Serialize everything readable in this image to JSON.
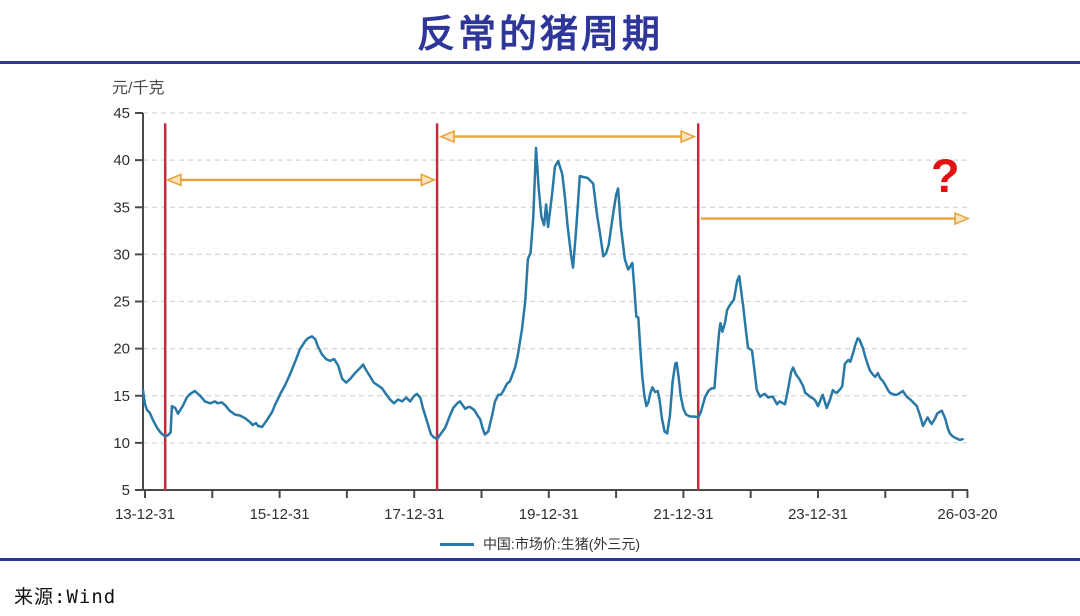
{
  "page": {
    "title": "反常的猪周期",
    "source": "来源:Wind",
    "accent_color": "#2f3699"
  },
  "chart_data": {
    "type": "line",
    "title": "反常的猪周期",
    "unit_label": "元/千克",
    "xlabel": "",
    "ylabel": "元/千克",
    "legend": {
      "label": "中国:市场价:生猪(外三元)",
      "position": "bottom-center"
    },
    "grid": {
      "shown": true,
      "dashed": true,
      "color": "#d6d6d6"
    },
    "axis_color": "#4a4a4a",
    "tick_text_color": "#2f2f2f",
    "y_axis": {
      "min": 5,
      "max": 45,
      "step": 5,
      "ticks": [
        5,
        10,
        15,
        20,
        25,
        30,
        35,
        40,
        45
      ]
    },
    "x_axis": {
      "start_year": 2013.97,
      "end_year": 2026.22,
      "tick_years": [
        2014,
        2015,
        2016,
        2017,
        2018,
        2019,
        2020,
        2021,
        2022,
        2023,
        2024,
        2025,
        2026,
        2026.22
      ],
      "labels": [
        {
          "year": 2014,
          "text": "13-12-31"
        },
        {
          "year": 2016,
          "text": "15-12-31"
        },
        {
          "year": 2018,
          "text": "17-12-31"
        },
        {
          "year": 2020,
          "text": "19-12-31"
        },
        {
          "year": 2022,
          "text": "21-12-31"
        },
        {
          "year": 2024,
          "text": "23-12-31"
        },
        {
          "year": 2026.22,
          "text": "26-03-20"
        }
      ]
    },
    "series": [
      {
        "name": "中国:市场价:生猪(外三元)",
        "color": "#2879a6",
        "points": [
          [
            2013.97,
            15.6
          ],
          [
            2014.0,
            14.1
          ],
          [
            2014.03,
            13.5
          ],
          [
            2014.07,
            13.2
          ],
          [
            2014.12,
            12.4
          ],
          [
            2014.18,
            11.6
          ],
          [
            2014.22,
            11.2
          ],
          [
            2014.26,
            10.9
          ],
          [
            2014.3,
            10.7
          ],
          [
            2014.34,
            10.8
          ],
          [
            2014.38,
            11.1
          ],
          [
            2014.4,
            13.9
          ],
          [
            2014.45,
            13.7
          ],
          [
            2014.49,
            13.1
          ],
          [
            2014.56,
            13.9
          ],
          [
            2014.62,
            14.8
          ],
          [
            2014.67,
            15.2
          ],
          [
            2014.74,
            15.5
          ],
          [
            2014.82,
            15.0
          ],
          [
            2014.89,
            14.4
          ],
          [
            2014.97,
            14.2
          ],
          [
            2015.04,
            14.4
          ],
          [
            2015.08,
            14.2
          ],
          [
            2015.14,
            14.3
          ],
          [
            2015.19,
            14.0
          ],
          [
            2015.26,
            13.4
          ],
          [
            2015.34,
            13.0
          ],
          [
            2015.41,
            12.9
          ],
          [
            2015.49,
            12.6
          ],
          [
            2015.56,
            12.2
          ],
          [
            2015.6,
            11.9
          ],
          [
            2015.65,
            12.1
          ],
          [
            2015.68,
            11.8
          ],
          [
            2015.74,
            11.7
          ],
          [
            2015.81,
            12.4
          ],
          [
            2015.89,
            13.3
          ],
          [
            2015.93,
            14.0
          ],
          [
            2016.01,
            15.2
          ],
          [
            2016.08,
            16.1
          ],
          [
            2016.15,
            17.2
          ],
          [
            2016.23,
            18.6
          ],
          [
            2016.3,
            19.9
          ],
          [
            2016.38,
            20.8
          ],
          [
            2016.42,
            21.1
          ],
          [
            2016.48,
            21.3
          ],
          [
            2016.53,
            21.0
          ],
          [
            2016.57,
            20.2
          ],
          [
            2016.63,
            19.4
          ],
          [
            2016.69,
            18.9
          ],
          [
            2016.75,
            18.7
          ],
          [
            2016.81,
            18.9
          ],
          [
            2016.87,
            18.2
          ],
          [
            2016.93,
            16.8
          ],
          [
            2016.99,
            16.4
          ],
          [
            2017.05,
            16.8
          ],
          [
            2017.12,
            17.4
          ],
          [
            2017.19,
            17.9
          ],
          [
            2017.24,
            18.3
          ],
          [
            2017.28,
            17.8
          ],
          [
            2017.34,
            17.1
          ],
          [
            2017.4,
            16.4
          ],
          [
            2017.46,
            16.1
          ],
          [
            2017.52,
            15.8
          ],
          [
            2017.58,
            15.2
          ],
          [
            2017.64,
            14.6
          ],
          [
            2017.7,
            14.2
          ],
          [
            2017.76,
            14.6
          ],
          [
            2017.82,
            14.4
          ],
          [
            2017.88,
            14.8
          ],
          [
            2017.94,
            14.4
          ],
          [
            2018.0,
            15.0
          ],
          [
            2018.04,
            15.2
          ],
          [
            2018.09,
            14.8
          ],
          [
            2018.13,
            13.7
          ],
          [
            2018.19,
            12.3
          ],
          [
            2018.25,
            10.9
          ],
          [
            2018.29,
            10.6
          ],
          [
            2018.34,
            10.4
          ],
          [
            2018.4,
            11.0
          ],
          [
            2018.46,
            11.6
          ],
          [
            2018.52,
            12.7
          ],
          [
            2018.58,
            13.7
          ],
          [
            2018.64,
            14.2
          ],
          [
            2018.68,
            14.4
          ],
          [
            2018.73,
            13.9
          ],
          [
            2018.76,
            13.6
          ],
          [
            2018.8,
            13.8
          ],
          [
            2018.83,
            13.8
          ],
          [
            2018.87,
            13.6
          ],
          [
            2018.9,
            13.4
          ],
          [
            2018.94,
            12.9
          ],
          [
            2018.98,
            12.5
          ],
          [
            2019.02,
            11.5
          ],
          [
            2019.05,
            10.9
          ],
          [
            2019.1,
            11.2
          ],
          [
            2019.16,
            13.0
          ],
          [
            2019.2,
            14.4
          ],
          [
            2019.25,
            15.1
          ],
          [
            2019.29,
            15.1
          ],
          [
            2019.33,
            15.6
          ],
          [
            2019.38,
            16.3
          ],
          [
            2019.42,
            16.5
          ],
          [
            2019.5,
            18.0
          ],
          [
            2019.54,
            19.3
          ],
          [
            2019.6,
            22.0
          ],
          [
            2019.65,
            25.0
          ],
          [
            2019.69,
            29.5
          ],
          [
            2019.73,
            30.2
          ],
          [
            2019.77,
            34.0
          ],
          [
            2019.81,
            41.3
          ],
          [
            2019.85,
            37.0
          ],
          [
            2019.89,
            34.0
          ],
          [
            2019.93,
            33.1
          ],
          [
            2019.96,
            35.3
          ],
          [
            2019.99,
            32.9
          ],
          [
            2020.05,
            36.5
          ],
          [
            2020.09,
            39.3
          ],
          [
            2020.14,
            39.9
          ],
          [
            2020.2,
            38.5
          ],
          [
            2020.24,
            36.0
          ],
          [
            2020.28,
            33.0
          ],
          [
            2020.33,
            30.0
          ],
          [
            2020.36,
            28.6
          ],
          [
            2020.4,
            32.0
          ],
          [
            2020.43,
            35.0
          ],
          [
            2020.46,
            38.3
          ],
          [
            2020.52,
            38.2
          ],
          [
            2020.58,
            38.1
          ],
          [
            2020.66,
            37.5
          ],
          [
            2020.72,
            34.0
          ],
          [
            2020.76,
            32.3
          ],
          [
            2020.81,
            29.8
          ],
          [
            2020.85,
            30.1
          ],
          [
            2020.89,
            31.0
          ],
          [
            2020.95,
            34.0
          ],
          [
            2021.0,
            36.3
          ],
          [
            2021.03,
            37.0
          ],
          [
            2021.07,
            33.0
          ],
          [
            2021.13,
            29.5
          ],
          [
            2021.18,
            28.4
          ],
          [
            2021.21,
            28.7
          ],
          [
            2021.24,
            29.1
          ],
          [
            2021.27,
            26.5
          ],
          [
            2021.3,
            23.4
          ],
          [
            2021.33,
            23.3
          ],
          [
            2021.36,
            20.0
          ],
          [
            2021.39,
            17.0
          ],
          [
            2021.42,
            15.0
          ],
          [
            2021.45,
            13.9
          ],
          [
            2021.48,
            14.3
          ],
          [
            2021.51,
            15.3
          ],
          [
            2021.54,
            15.9
          ],
          [
            2021.58,
            15.4
          ],
          [
            2021.62,
            15.5
          ],
          [
            2021.65,
            14.4
          ],
          [
            2021.68,
            12.6
          ],
          [
            2021.72,
            11.2
          ],
          [
            2021.76,
            11.0
          ],
          [
            2021.8,
            12.9
          ],
          [
            2021.84,
            16.5
          ],
          [
            2021.88,
            18.4
          ],
          [
            2021.9,
            18.5
          ],
          [
            2021.93,
            16.9
          ],
          [
            2021.96,
            15.0
          ],
          [
            2022.0,
            13.6
          ],
          [
            2022.04,
            13.0
          ],
          [
            2022.1,
            12.8
          ],
          [
            2022.16,
            12.8
          ],
          [
            2022.22,
            12.7
          ],
          [
            2022.26,
            13.3
          ],
          [
            2022.32,
            14.8
          ],
          [
            2022.37,
            15.5
          ],
          [
            2022.42,
            15.8
          ],
          [
            2022.46,
            15.8
          ],
          [
            2022.5,
            19.2
          ],
          [
            2022.53,
            21.7
          ],
          [
            2022.55,
            22.7
          ],
          [
            2022.58,
            21.8
          ],
          [
            2022.62,
            22.8
          ],
          [
            2022.65,
            24.1
          ],
          [
            2022.69,
            24.6
          ],
          [
            2022.72,
            24.9
          ],
          [
            2022.75,
            25.2
          ],
          [
            2022.8,
            27.2
          ],
          [
            2022.83,
            27.7
          ],
          [
            2022.86,
            26.0
          ],
          [
            2022.89,
            24.4
          ],
          [
            2022.92,
            22.5
          ],
          [
            2022.96,
            20.1
          ],
          [
            2023.02,
            19.8
          ],
          [
            2023.06,
            17.5
          ],
          [
            2023.09,
            15.6
          ],
          [
            2023.14,
            14.9
          ],
          [
            2023.18,
            15.1
          ],
          [
            2023.21,
            15.2
          ],
          [
            2023.26,
            14.8
          ],
          [
            2023.3,
            14.9
          ],
          [
            2023.33,
            14.9
          ],
          [
            2023.39,
            14.1
          ],
          [
            2023.43,
            14.4
          ],
          [
            2023.48,
            14.2
          ],
          [
            2023.51,
            14.1
          ],
          [
            2023.55,
            15.5
          ],
          [
            2023.6,
            17.5
          ],
          [
            2023.63,
            18.0
          ],
          [
            2023.67,
            17.3
          ],
          [
            2023.73,
            16.7
          ],
          [
            2023.78,
            16.0
          ],
          [
            2023.81,
            15.3
          ],
          [
            2023.85,
            15.1
          ],
          [
            2023.88,
            14.9
          ],
          [
            2023.93,
            14.7
          ],
          [
            2023.96,
            14.5
          ],
          [
            2024.0,
            13.9
          ],
          [
            2024.04,
            14.6
          ],
          [
            2024.07,
            15.1
          ],
          [
            2024.1,
            14.4
          ],
          [
            2024.13,
            13.7
          ],
          [
            2024.18,
            14.6
          ],
          [
            2024.22,
            15.6
          ],
          [
            2024.25,
            15.4
          ],
          [
            2024.28,
            15.3
          ],
          [
            2024.33,
            15.7
          ],
          [
            2024.36,
            16.0
          ],
          [
            2024.4,
            18.4
          ],
          [
            2024.45,
            18.8
          ],
          [
            2024.48,
            18.6
          ],
          [
            2024.52,
            19.5
          ],
          [
            2024.55,
            20.3
          ],
          [
            2024.59,
            21.1
          ],
          [
            2024.62,
            20.9
          ],
          [
            2024.67,
            20.0
          ],
          [
            2024.7,
            19.2
          ],
          [
            2024.74,
            18.3
          ],
          [
            2024.77,
            17.7
          ],
          [
            2024.82,
            17.2
          ],
          [
            2024.85,
            17.0
          ],
          [
            2024.89,
            17.4
          ],
          [
            2024.92,
            16.9
          ],
          [
            2024.97,
            16.5
          ],
          [
            2025.01,
            16.0
          ],
          [
            2025.04,
            15.6
          ],
          [
            2025.07,
            15.3
          ],
          [
            2025.11,
            15.2
          ],
          [
            2025.14,
            15.1
          ],
          [
            2025.17,
            15.1
          ],
          [
            2025.22,
            15.3
          ],
          [
            2025.26,
            15.5
          ],
          [
            2025.29,
            15.2
          ],
          [
            2025.32,
            14.9
          ],
          [
            2025.37,
            14.6
          ],
          [
            2025.4,
            14.4
          ],
          [
            2025.44,
            14.1
          ],
          [
            2025.47,
            13.9
          ],
          [
            2025.52,
            12.8
          ],
          [
            2025.56,
            11.8
          ],
          [
            2025.59,
            12.2
          ],
          [
            2025.63,
            12.7
          ],
          [
            2025.66,
            12.3
          ],
          [
            2025.69,
            12.0
          ],
          [
            2025.74,
            12.6
          ],
          [
            2025.77,
            13.1
          ],
          [
            2025.81,
            13.3
          ],
          [
            2025.84,
            13.4
          ],
          [
            2025.89,
            12.6
          ],
          [
            2025.93,
            11.5
          ],
          [
            2025.96,
            11.0
          ],
          [
            2026.0,
            10.7
          ],
          [
            2026.05,
            10.5
          ],
          [
            2026.08,
            10.4
          ],
          [
            2026.11,
            10.3
          ],
          [
            2026.15,
            10.4
          ]
        ]
      }
    ],
    "cycle_bottom_lines": {
      "color": "#c22b3b",
      "top_value": 43.9,
      "years": [
        2014.3,
        2018.34,
        2022.22
      ]
    },
    "arrows": {
      "color": "#e8a33c",
      "items": [
        {
          "from_year": 2014.34,
          "to_year": 2018.3,
          "at_value": 37.9,
          "heads": "both"
        },
        {
          "from_year": 2018.4,
          "to_year": 2022.16,
          "at_value": 42.5,
          "heads": "both"
        },
        {
          "from_year": 2022.26,
          "to_year": 2026.23,
          "at_value": 33.8,
          "heads": "right"
        }
      ]
    },
    "question_mark": {
      "text": "?",
      "year": 2025.89,
      "value": 38.4,
      "color": "#e11212"
    }
  }
}
